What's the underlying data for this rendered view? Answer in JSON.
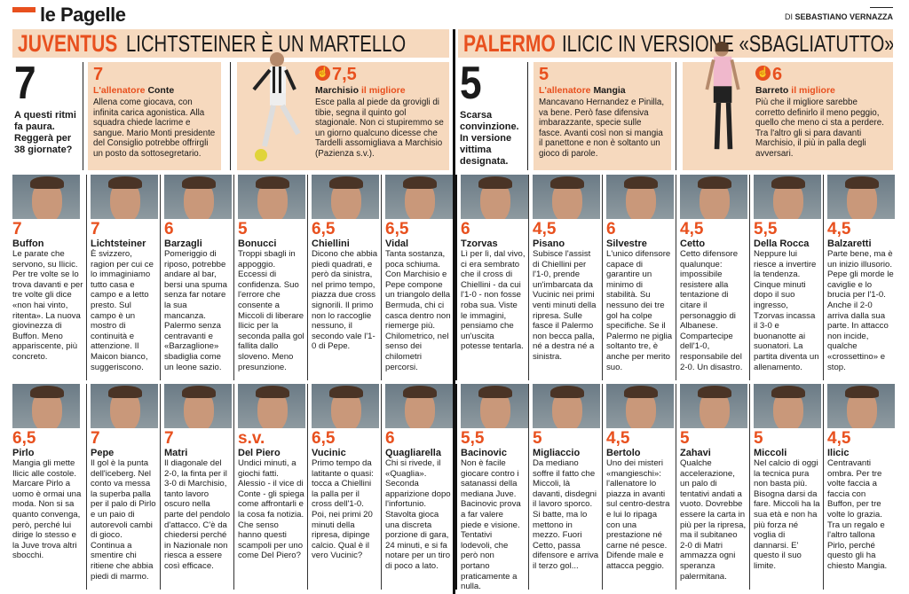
{
  "masthead": {
    "title": "le Pagelle",
    "byline_prefix": "DI",
    "byline_author": "SEBASTIANO VERNAZZA",
    "accent": "#e8501e",
    "band": "#f6d9be"
  },
  "juventus": {
    "team": "JUVENTUS",
    "headline": "LICHTSTEINER È UN MARTELLO",
    "team_rating": "7",
    "team_note": "A questi ritmi fa paura. Reggerà per 38 giornate?",
    "coach": {
      "rating": "7",
      "label": "L'allenatore",
      "name": "Conte",
      "text": "Allena come giocava, con infinita carica agonistica. Alla squadra chiede lacrime e sangue. Mario Monti presidente del Consiglio potrebbe offrirgli un posto da sottosegretario."
    },
    "best": {
      "icon": "thumbs-up-icon",
      "rating": "7,5",
      "name": "Marchisio",
      "label": "il migliore",
      "text": "Esce palla al piede da grovigli di tibie, segna il quinto gol stagionale. Non ci stupiremmo se un giorno qualcuno dicesse che Tardelli assomigliava a Marchisio (Pazienza s.v.)."
    }
  },
  "palermo": {
    "team": "PALERMO",
    "headline": "ILICIC IN VERSIONE «SBAGLIATUTTO»",
    "team_rating": "5",
    "team_note": "Scarsa convinzione. In versione vittima designata.",
    "coach": {
      "rating": "5",
      "label": "L'allenatore",
      "name": "Mangia",
      "text": "Mancavano Hernandez e Pinilla, va bene. Però fase difensiva imbarazzante, specie sulle fasce. Avanti così non si mangia il panettone e non è soltanto un gioco di parole."
    },
    "best": {
      "icon": "thumbs-up-icon",
      "rating": "6",
      "name": "Barreto",
      "label": "il migliore",
      "text": "Più che il migliore sarebbe corretto definirlo il meno peggio, quello che meno ci sta a perdere. Tra l'altro gli si para davanti Marchisio, il più in palla degli avversari."
    }
  },
  "row1": [
    {
      "rating": "7",
      "name": "Buffon",
      "text": "Le parate che servono, su Ilicic. Per tre volte se lo trova davanti e per tre volte gli dice «non hai vinto, ritenta». La nuova giovinezza di Buffon. Meno appariscente, più concreto."
    },
    {
      "rating": "7",
      "name": "Lichtsteiner",
      "text": "È svizzero, ragion per cui ce lo immaginiamo tutto casa e campo e a letto presto. Sul campo è un mostro di continuità e attenzione. Il Maicon bianco, suggeriscono."
    },
    {
      "rating": "6",
      "name": "Barzagli",
      "text": "Pomeriggio di riposo, potrebbe andare al bar, bersi una spuma senza far notare la sua mancanza. Palermo senza centravanti e «Barzaglione» sbadiglia come un leone sazio."
    },
    {
      "rating": "5",
      "name": "Bonucci",
      "text": "Troppi sbagli in appoggio. Eccessi di confidenza. Suo l'errore che consente a Miccoli di liberare Ilicic per la seconda palla gol fallita dallo sloveno. Meno presunzione."
    },
    {
      "rating": "6,5",
      "name": "Chiellini",
      "text": "Dicono che abbia piedi quadrati, e però da sinistra, nel primo tempo, piazza due cross signorili. Il primo non lo raccoglie nessuno, il secondo vale l'1-0 di Pepe."
    },
    {
      "rating": "6,5",
      "name": "Vidal",
      "text": "Tanta sostanza, poca schiuma. Con Marchisio e Pepe compone un triangolo della Bermuda, chi ci casca dentro non riemerge più. Chilometrico, nel senso dei chilometri percorsi."
    },
    {
      "rating": "6",
      "name": "Tzorvas",
      "text": "Lì per lì, dal vivo, ci era sembrato che il cross di Chiellini - da cui l'1-0 - non fosse roba sua. Viste le immagini, pensiamo che un'uscita potesse tentarla."
    },
    {
      "rating": "4,5",
      "name": "Pisano",
      "text": "Subisce l'assist di Chiellini per l'1-0, prende un'imbarcata da Vucinic nei primi venti minuti della ripresa. Sulle fasce il Palermo non becca palla, né a destra né a sinistra."
    },
    {
      "rating": "6",
      "name": "Silvestre",
      "text": "L'unico difensore capace di garantire un minimo di stabilità. Su nessuno dei tre gol ha colpe specifiche. Se il Palermo ne piglia soltanto tre, è anche per merito suo."
    },
    {
      "rating": "4,5",
      "name": "Cetto",
      "text": "Cetto difensore qualunque: impossibile resistere alla tentazione di citare il personaggio di Albanese. Compartecipe dell'1-0, responsabile del 2-0. Un disastro."
    },
    {
      "rating": "5,5",
      "name": "Della Rocca",
      "text": "Neppure lui riesce a invertire la tendenza. Cinque minuti dopo il suo ingresso, Tzorvas incassa il 3-0 e buonanotte ai suonatori. La partita diventa un allenamento."
    },
    {
      "rating": "4,5",
      "name": "Balzaretti",
      "text": "Parte bene, ma è un inizio illusorio. Pepe gli morde le caviglie e lo brucia per l'1-0. Anche il 2-0 arriva dalla sua parte. In attacco non incide, qualche «crossettino» e stop."
    }
  ],
  "row2": [
    {
      "rating": "6,5",
      "name": "Pirlo",
      "text": "Mangia gli mette Ilicic alle costole. Marcare Pirlo a uomo è ormai una moda. Non si sa quanto convenga, però, perché lui dirige lo stesso e la Juve trova altri sbocchi."
    },
    {
      "rating": "7",
      "name": "Pepe",
      "text": "Il gol è la punta dell'iceberg. Nel conto va messa la superba palla per il palo di Pirlo e un paio di autorevoli cambi di gioco. Continua a smentire chi ritiene che abbia piedi di marmo."
    },
    {
      "rating": "7",
      "name": "Matri",
      "text": "Il diagonale del 2-0, la finta per il 3-0 di Marchisio, tanto lavoro oscuro nella parte del pendolo d'attacco. C'è da chiedersi perché in Nazionale non riesca a essere così efficace."
    },
    {
      "rating": "s.v.",
      "name": "Del Piero",
      "text": "Undici minuti, a giochi fatti. Alessio - il vice di Conte - gli spiega come affrontarli e la cosa fa notizia. Che senso hanno questi scampoli per uno come Del Piero?"
    },
    {
      "rating": "6,5",
      "name": "Vucinic",
      "text": "Primo tempo da latitante o quasi: tocca a Chiellini la palla per il cross dell'1-0. Poi, nei primi 20 minuti della ripresa, dipinge calcio. Qual è il vero Vucinic?"
    },
    {
      "rating": "6",
      "name": "Quagliarella",
      "text": "Chi si rivede, il «Quaglia». Seconda apparizione dopo l'infortunio. Stavolta gioca una discreta porzione di gara, 24 minuti, e si fa notare per un tiro di poco a lato."
    },
    {
      "rating": "5,5",
      "name": "Bacinovic",
      "text": "Non è facile giocare contro i satanassi della mediana Juve. Bacinovic prova a far valere piede e visione. Tentativi lodevoli, che però non portano praticamente a nulla."
    },
    {
      "rating": "5",
      "name": "Migliaccio",
      "text": "Da mediano soffre il fatto che Miccoli, là davanti, disdegni il lavoro sporco. Si batte, ma lo mettono in mezzo. Fuori Cetto, passa difensore e arriva il terzo gol..."
    },
    {
      "rating": "4,5",
      "name": "Bertolo",
      "text": "Uno dei misteri «mangieschi»: l'allenatore lo piazza in avanti sul centro-destra e lui lo ripaga con una prestazione né carne né pesce. Difende male e attacca peggio."
    },
    {
      "rating": "5",
      "name": "Zahavi",
      "text": "Qualche accelerazione, un palo di tentativi andati a vuoto. Dovrebbe essere la carta in più per la ripresa, ma il subitaneo 2-0 di Matri ammazza ogni speranza palermitana."
    },
    {
      "rating": "5",
      "name": "Miccoli",
      "text": "Nel calcio di oggi la tecnica pura non basta più. Bisogna darsi da fare. Miccoli ha la sua età e non ha più forza né voglia di dannarsi. E' questo il suo limite."
    },
    {
      "rating": "4,5",
      "name": "Ilicic",
      "text": "Centravanti ombra. Per tre volte faccia a faccia con Buffon, per tre volte lo grazia. Tra un regalo e l'altro tallona Pirlo, perché questo gli ha chiesto Mangia."
    }
  ]
}
